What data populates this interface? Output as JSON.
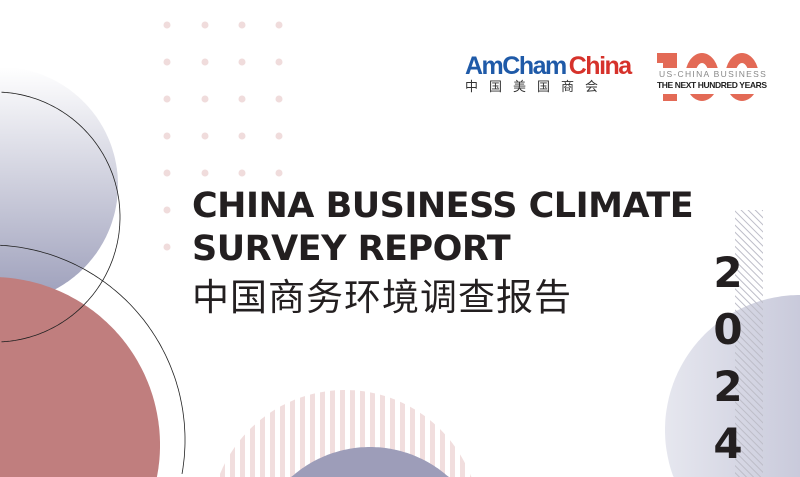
{
  "logo": {
    "amcham_blue": "AmCham",
    "amcham_red": "China",
    "amcham_cn": "中国美国商会",
    "brand_blue": "#1f5aa8",
    "brand_red": "#d6322b"
  },
  "centennial": {
    "number": "100",
    "line1": "US-CHINA  BUSINESS",
    "line2": "THE NEXT HUNDRED YEARS",
    "color": "#e05a44"
  },
  "title": {
    "line1": "CHINA BUSINESS CLIMATE",
    "line2": "SURVEY REPORT",
    "chinese": "中国商务环境调查报告"
  },
  "year": [
    "2",
    "0",
    "2",
    "4"
  ],
  "colors": {
    "slate": "#9d9db9",
    "rose": "#c07e7e",
    "stripe": "#f0dcdc"
  }
}
